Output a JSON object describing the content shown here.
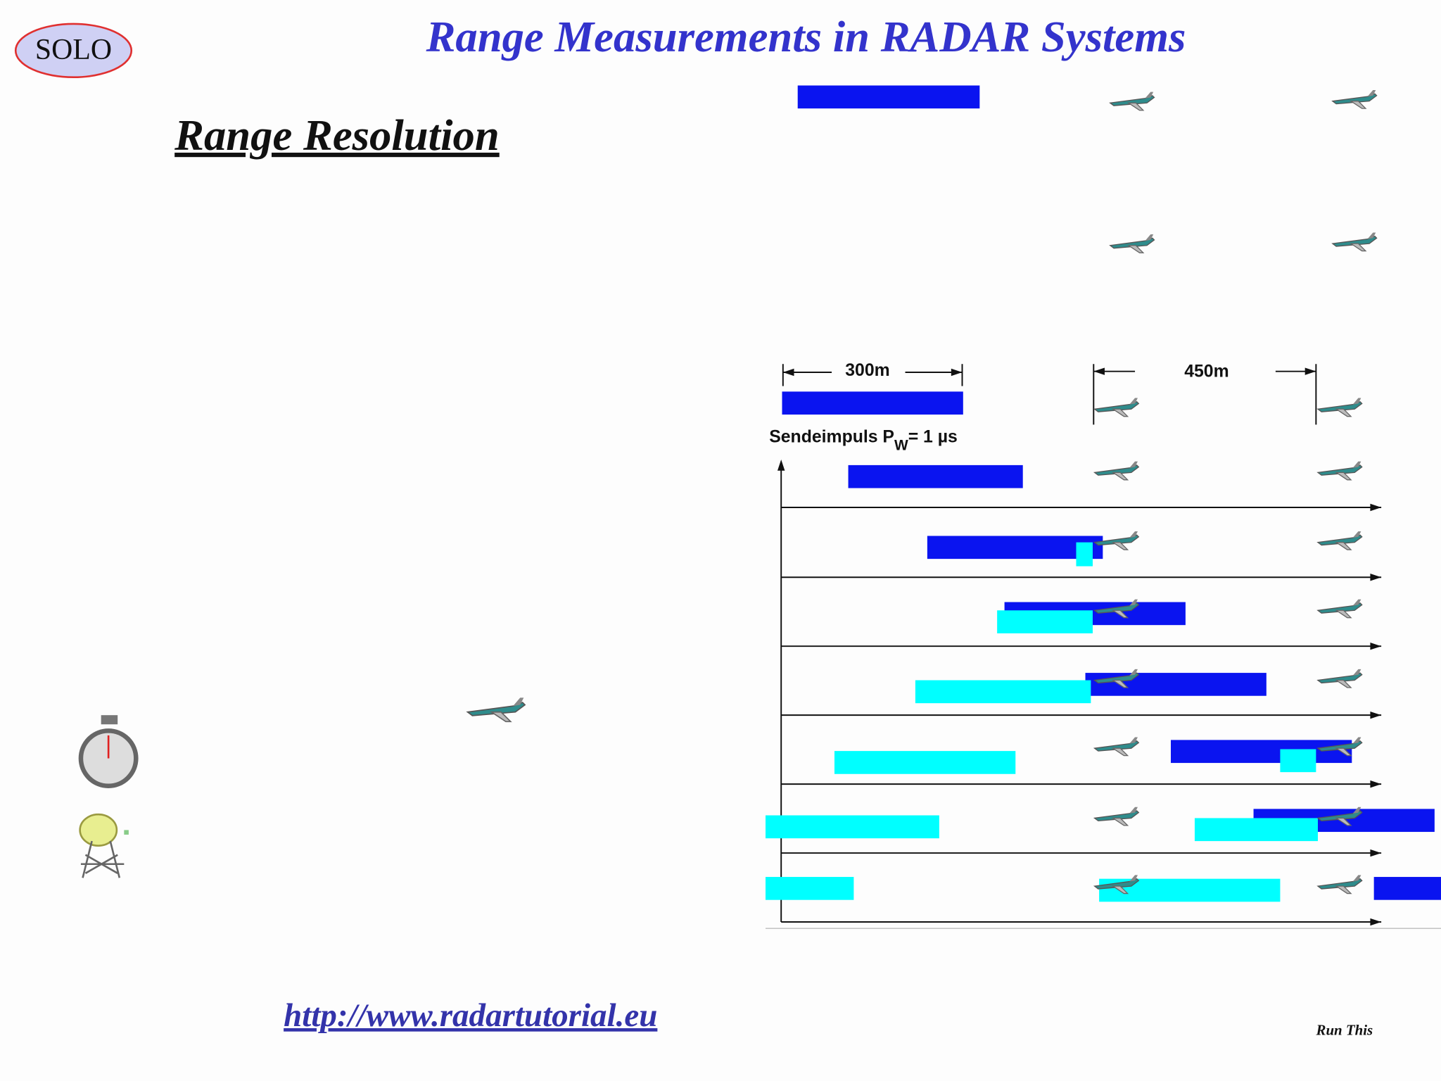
{
  "logo": "SOLO",
  "header": {
    "title": "Range Measurements in RADAR Systems"
  },
  "section": {
    "title": "Range Resolution"
  },
  "diagram": {
    "dimension_left": "300m",
    "dimension_right": "450m",
    "pulse_label": {
      "text": "Sendeimpuls P",
      "subscript": "W",
      "suffix": "= 1 µs"
    }
  },
  "footer": {
    "url": "http://www.radartutorial.eu",
    "run": "Run This"
  }
}
